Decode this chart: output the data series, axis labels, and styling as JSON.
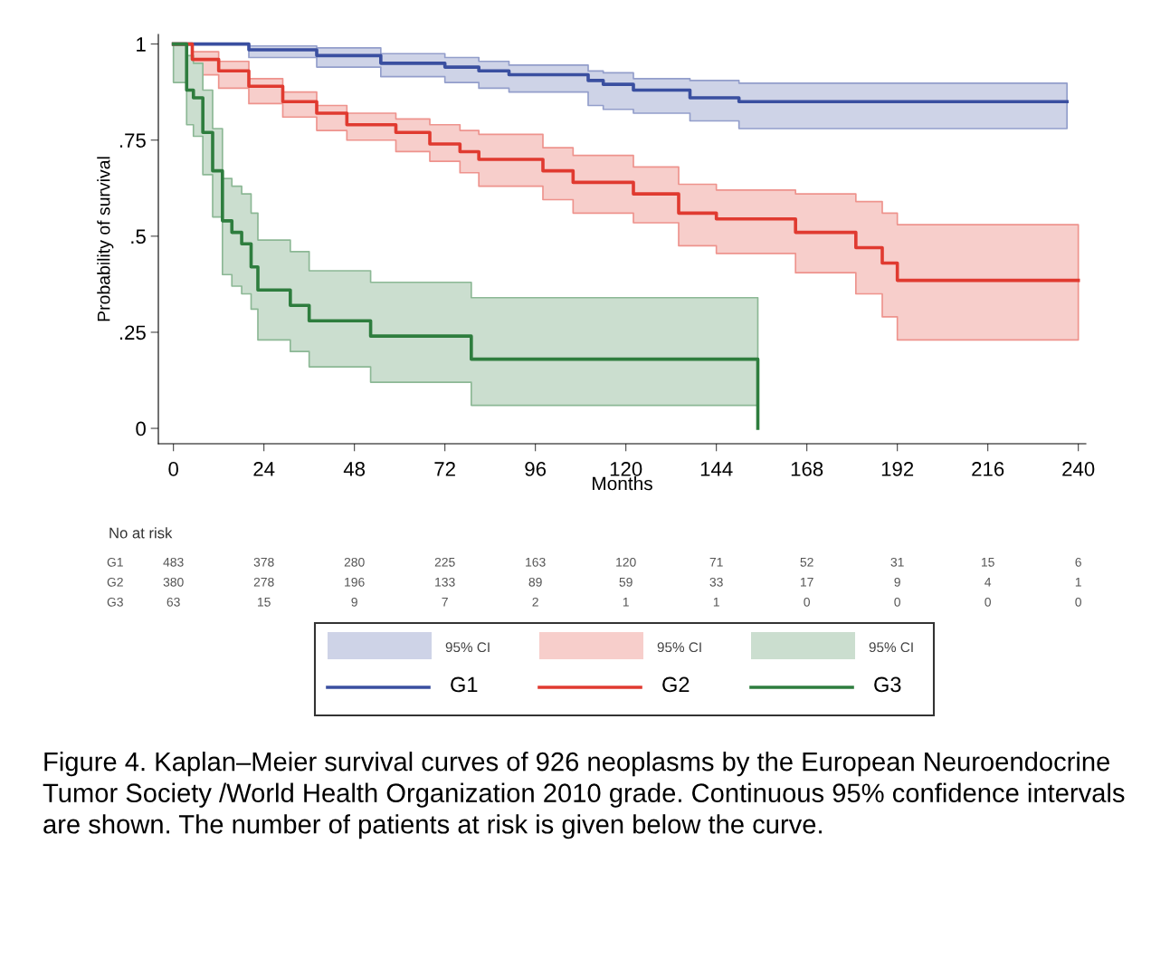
{
  "chart_data": {
    "type": "step",
    "xlabel": "Months",
    "ylabel": "Probability of survival",
    "xlim": [
      -4,
      242
    ],
    "ylim": [
      -0.04,
      1.025
    ],
    "xticks": [
      0,
      24,
      48,
      72,
      96,
      120,
      144,
      168,
      192,
      216,
      240
    ],
    "yticks": [
      {
        "value": 0,
        "label": "0"
      },
      {
        "value": 0.25,
        "label": ".25"
      },
      {
        "value": 0.5,
        "label": ".5"
      },
      {
        "value": 0.75,
        "label": ".75"
      },
      {
        "value": 1,
        "label": "1"
      }
    ],
    "grid": false,
    "legend": "bottom",
    "series": [
      {
        "name": "G1",
        "color": "#3a4fa0",
        "x": [
          0,
          20,
          38,
          55,
          72,
          81,
          89,
          110,
          114,
          122,
          137,
          150,
          237
        ],
        "values": [
          1,
          0.985,
          0.97,
          0.95,
          0.94,
          0.93,
          0.92,
          0.905,
          0.895,
          0.88,
          0.86,
          0.85,
          0.85
        ],
        "lower": [
          1,
          0.965,
          0.94,
          0.915,
          0.9,
          0.885,
          0.875,
          0.84,
          0.83,
          0.82,
          0.8,
          0.78,
          0.78
        ],
        "upper": [
          1,
          0.995,
          0.99,
          0.975,
          0.965,
          0.955,
          0.945,
          0.93,
          0.925,
          0.91,
          0.905,
          0.898,
          0.898
        ]
      },
      {
        "name": "G2",
        "color": "#e03a30",
        "x": [
          0,
          5,
          12,
          20,
          29,
          38,
          46,
          59,
          68,
          76,
          81,
          98,
          106,
          122,
          134,
          144,
          165,
          181,
          188,
          192,
          240
        ],
        "values": [
          1,
          0.96,
          0.93,
          0.89,
          0.85,
          0.82,
          0.79,
          0.77,
          0.74,
          0.72,
          0.7,
          0.67,
          0.64,
          0.61,
          0.56,
          0.545,
          0.51,
          0.47,
          0.43,
          0.385,
          0.385
        ],
        "lower": [
          1,
          0.92,
          0.885,
          0.845,
          0.81,
          0.775,
          0.75,
          0.72,
          0.695,
          0.665,
          0.63,
          0.595,
          0.56,
          0.535,
          0.475,
          0.455,
          0.405,
          0.35,
          0.29,
          0.23,
          0.23
        ],
        "upper": [
          1,
          0.98,
          0.955,
          0.91,
          0.875,
          0.84,
          0.82,
          0.805,
          0.79,
          0.775,
          0.765,
          0.73,
          0.71,
          0.68,
          0.635,
          0.62,
          0.61,
          0.59,
          0.56,
          0.53,
          0.53
        ]
      },
      {
        "name": "G3",
        "color": "#2e7d3e",
        "x": [
          0,
          3.5,
          5.3,
          7.8,
          10.4,
          13,
          15.5,
          18.1,
          20.6,
          22.4,
          31,
          36,
          52.3,
          79,
          155
        ],
        "values": [
          1,
          0.88,
          0.86,
          0.77,
          0.67,
          0.54,
          0.51,
          0.48,
          0.42,
          0.36,
          0.32,
          0.28,
          0.24,
          0.18,
          0
        ],
        "lower": [
          0.9,
          0.79,
          0.76,
          0.66,
          0.55,
          0.4,
          0.37,
          0.35,
          0.31,
          0.23,
          0.2,
          0.16,
          0.12,
          0.06,
          0.06
        ],
        "upper": [
          1,
          0.97,
          0.95,
          0.88,
          0.78,
          0.65,
          0.63,
          0.61,
          0.56,
          0.49,
          0.46,
          0.41,
          0.38,
          0.34,
          0.34
        ]
      }
    ],
    "annotations": [
      "No at risk",
      "G1",
      "483",
      "378",
      "280",
      "225",
      "163",
      "120",
      "71",
      "52",
      "31",
      "15",
      "6",
      "G2",
      "380",
      "278",
      "196",
      "133",
      "89",
      "59",
      "33",
      "17",
      "9",
      "4",
      "1",
      "G3",
      "63",
      "15",
      "9",
      "7",
      "2",
      "1",
      "1",
      "0",
      "0",
      "0",
      "0",
      "95% CI",
      "Figure 4. Kaplan–Meier survival curves of 926 neoplasms by the European Neuroendocrine Tumor Society /World Health Organization 2010 grade. Continuous 95% confidence intervals are shown. The number of patients at risk is given below the curve."
    ]
  }
}
